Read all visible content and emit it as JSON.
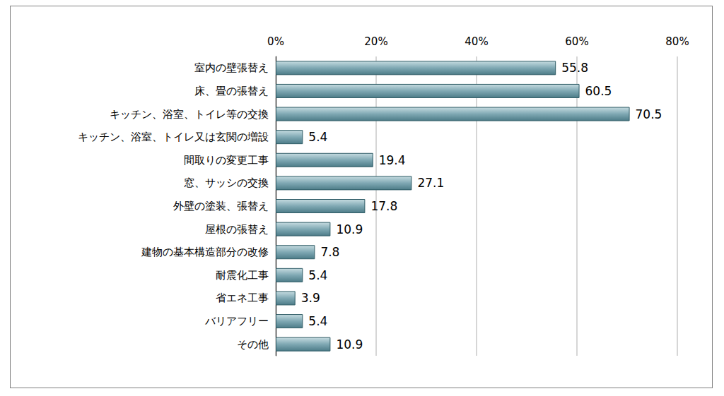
{
  "chart_data": {
    "type": "bar",
    "orientation": "horizontal",
    "categories": [
      "室内の壁張替え",
      "床、畳の張替え",
      "キッチン、浴室、トイレ等の交換",
      "キッチン、浴室、トイレ又は玄関の増設",
      "間取りの変更工事",
      "窓、サッシの交換",
      "外壁の塗装、張替え",
      "屋根の張替え",
      "建物の基本構造部分の改修",
      "耐震化工事",
      "省エネ工事",
      "バリアフリー",
      "その他"
    ],
    "values": [
      55.8,
      60.5,
      70.5,
      5.4,
      19.4,
      27.1,
      17.8,
      10.9,
      7.8,
      5.4,
      3.9,
      5.4,
      10.9
    ],
    "color": "#7fa8b3",
    "xlim": [
      0,
      80
    ],
    "xticks": [
      {
        "value": 0,
        "label": "0%"
      },
      {
        "value": 20,
        "label": "20%"
      },
      {
        "value": 40,
        "label": "40%"
      },
      {
        "value": 60,
        "label": "60%"
      },
      {
        "value": 80,
        "label": "80%"
      }
    ],
    "grid": true,
    "data_labels": true
  }
}
